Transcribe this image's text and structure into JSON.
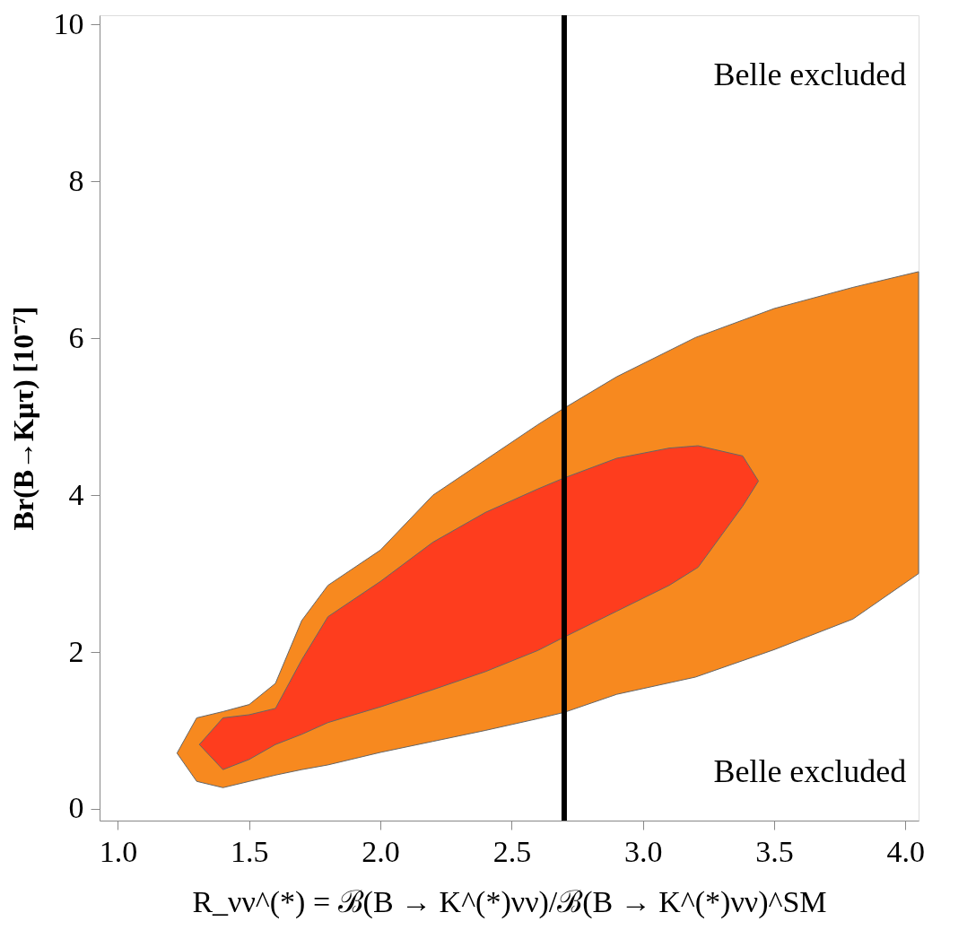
{
  "chart_data": {
    "type": "area",
    "xlabel": "R_νν^(*) = ℬ(B → K^(*)νν)/ℬ(B → K^(*)νν)^SM",
    "ylabel": "Br(B→Kμτ) [10⁻⁷]",
    "series": [
      {
        "type": "area",
        "color": "#f7891f",
        "x": [
          1.225,
          1.3,
          1.4,
          1.5,
          1.6,
          1.7,
          1.8,
          2.0,
          2.2,
          2.4,
          2.6,
          2.7,
          2.9,
          3.2,
          3.5,
          3.8,
          4.05,
          4.05,
          3.8,
          3.5,
          3.2,
          2.9,
          2.7,
          2.6,
          2.4,
          2.2,
          2.0,
          1.8,
          1.7,
          1.6,
          1.5,
          1.4,
          1.3
        ],
        "values": [
          0.71,
          1.16,
          1.24,
          1.33,
          1.6,
          2.4,
          2.85,
          3.3,
          4.0,
          4.45,
          4.9,
          5.11,
          5.51,
          6.01,
          6.38,
          6.65,
          6.85,
          3.0,
          2.42,
          2.03,
          1.68,
          1.46,
          1.23,
          1.15,
          1.0,
          0.86,
          0.72,
          0.56,
          0.5,
          0.43,
          0.35,
          0.27,
          0.35
        ]
      },
      {
        "type": "area",
        "color": "#fe3d1e",
        "x": [
          1.31,
          1.4,
          1.5,
          1.6,
          1.7,
          1.8,
          2.0,
          2.2,
          2.4,
          2.6,
          2.7,
          2.9,
          3.1,
          3.21,
          3.38,
          3.44,
          3.38,
          3.21,
          3.1,
          2.9,
          2.7,
          2.6,
          2.4,
          2.2,
          2.0,
          1.8,
          1.7,
          1.6,
          1.5,
          1.4
        ],
        "values": [
          0.82,
          1.16,
          1.2,
          1.28,
          1.9,
          2.45,
          2.9,
          3.4,
          3.78,
          4.08,
          4.22,
          4.47,
          4.6,
          4.63,
          4.5,
          4.18,
          3.86,
          3.08,
          2.85,
          2.52,
          2.19,
          2.02,
          1.75,
          1.52,
          1.3,
          1.1,
          0.95,
          0.82,
          0.63,
          0.5
        ]
      }
    ],
    "xlim": [
      0.93,
      4.05
    ],
    "xticks": [
      {
        "value": 1,
        "label": "1.0"
      },
      {
        "value": 1.5,
        "label": "1.5"
      },
      {
        "value": 2,
        "label": "2.0"
      },
      {
        "value": 2.5,
        "label": "2.5"
      },
      {
        "value": 3,
        "label": "3.0"
      },
      {
        "value": 3.5,
        "label": "3.5"
      },
      {
        "value": 4,
        "label": "4.0"
      }
    ],
    "ylim": [
      -0.15,
      10.12
    ],
    "yticks": [
      0,
      2,
      4,
      6,
      8,
      10
    ],
    "ref_lines": [
      {
        "axis": "x",
        "value": 2.7,
        "color": "#000000",
        "line_style": "solid"
      }
    ],
    "annotations": [
      "Belle excluded",
      "Belle excluded"
    ],
    "grid": false,
    "legend": false
  }
}
